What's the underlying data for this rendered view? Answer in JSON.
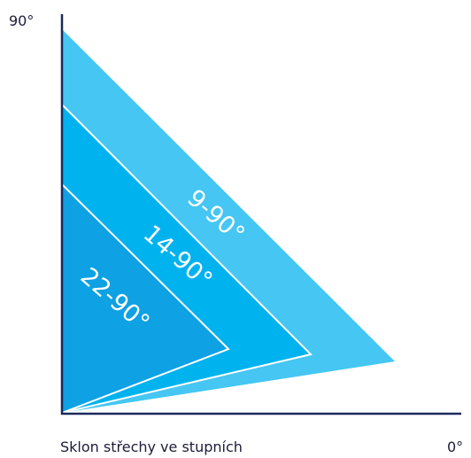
{
  "axis": {
    "top_label": "90°",
    "bottom_left_label": "Sklon střechy ve stupních",
    "bottom_right_label": "0°"
  },
  "bands": [
    {
      "label": "9-90°",
      "color": "#45c6f3"
    },
    {
      "label": "14-90°",
      "color": "#00b3ee"
    },
    {
      "label": "22-90°",
      "color": "#0ea1e3"
    }
  ],
  "colors": {
    "axis_line": "#1b2a5b",
    "band_outline": "#ffffff"
  }
}
